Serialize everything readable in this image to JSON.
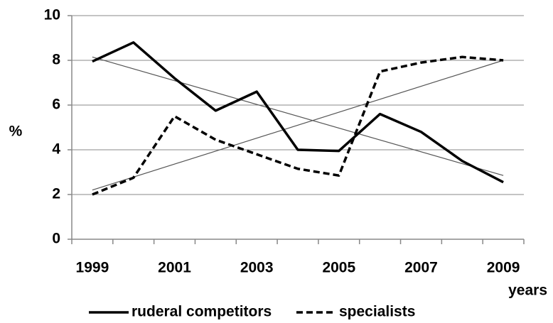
{
  "chart_data": {
    "type": "line",
    "categories": [
      "1999",
      null,
      "2001",
      null,
      "2003",
      null,
      "2005",
      null,
      "2007",
      null,
      "2009"
    ],
    "series": [
      {
        "name": "ruderal competitors",
        "color": "#000000",
        "dash": false,
        "values": [
          7.95,
          8.8,
          7.2,
          5.75,
          6.6,
          4.0,
          3.95,
          5.6,
          4.8,
          3.5,
          2.55
        ]
      },
      {
        "name": "specialists",
        "color": "#000000",
        "dash": true,
        "values": [
          2.0,
          2.75,
          5.5,
          4.45,
          3.8,
          3.15,
          2.85,
          7.5,
          7.9,
          8.15,
          8.0
        ]
      }
    ],
    "trendlines": [
      {
        "values": [
          8.15,
          2.85
        ]
      },
      {
        "values": [
          2.2,
          8.0
        ]
      }
    ],
    "y_label": "%",
    "x_label": "years",
    "ylim": [
      0,
      10
    ],
    "yticks": [
      0,
      2,
      4,
      6,
      8,
      10
    ],
    "grid": true
  }
}
